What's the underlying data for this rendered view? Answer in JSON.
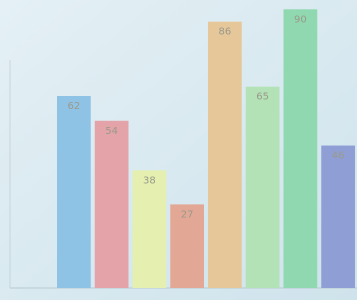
{
  "chart_data": {
    "type": "bar",
    "values": [
      62,
      54,
      38,
      27,
      86,
      65,
      90,
      46
    ],
    "colors": [
      "#8fc3e6",
      "#e3a3a8",
      "#e4efb0",
      "#e3a895",
      "#e6c79a",
      "#b3e2b6",
      "#8fd8b0",
      "#8f9fd6"
    ],
    "ylim": [
      0,
      93
    ]
  }
}
